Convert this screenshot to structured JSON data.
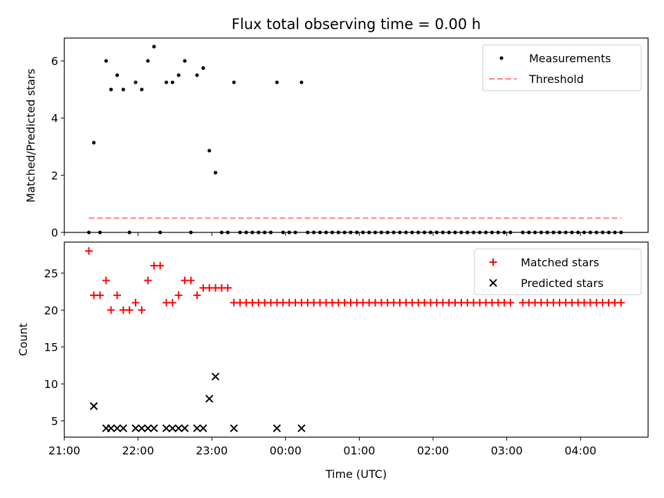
{
  "chart_data": [
    {
      "type": "scatter",
      "title": "Flux total observing time = 0.00 h",
      "xlabel": "",
      "ylabel": "Matched/Predicted stars",
      "xlim": [
        "21:00",
        "04:55"
      ],
      "ylim": [
        0,
        6.8
      ],
      "yticks": [
        0,
        2,
        4,
        6
      ],
      "grid": false,
      "legend_position": "top-right",
      "series": [
        {
          "name": "Measurements",
          "marker": "dot",
          "color": "#000000",
          "points": [
            [
              "21:20",
              0
            ],
            [
              "21:24",
              3.14
            ],
            [
              "21:29",
              0
            ],
            [
              "21:34",
              6.0
            ],
            [
              "21:38",
              5.0
            ],
            [
              "21:43",
              5.5
            ],
            [
              "21:48",
              5.0
            ],
            [
              "21:53",
              0
            ],
            [
              "21:58",
              5.25
            ],
            [
              "22:03",
              5.0
            ],
            [
              "22:08",
              6.0
            ],
            [
              "22:13",
              6.5
            ],
            [
              "22:18",
              0
            ],
            [
              "22:23",
              5.25
            ],
            [
              "22:28",
              5.25
            ],
            [
              "22:33",
              5.5
            ],
            [
              "22:38",
              6.0
            ],
            [
              "22:43",
              0
            ],
            [
              "22:48",
              5.5
            ],
            [
              "22:53",
              5.75
            ],
            [
              "22:58",
              2.86
            ],
            [
              "23:03",
              2.09
            ],
            [
              "23:08",
              0
            ],
            [
              "23:13",
              0
            ],
            [
              "23:18",
              5.25
            ],
            [
              "23:23",
              0
            ],
            [
              "23:28",
              0
            ],
            [
              "23:33",
              0
            ],
            [
              "23:38",
              0
            ],
            [
              "23:43",
              0
            ],
            [
              "23:48",
              0
            ],
            [
              "23:53",
              5.25
            ],
            [
              "23:58",
              0
            ],
            [
              "00:03",
              0
            ],
            [
              "00:08",
              0
            ],
            [
              "00:13",
              5.25
            ],
            [
              "00:18",
              0
            ],
            [
              "00:23",
              0
            ],
            [
              "00:28",
              0
            ],
            [
              "00:33",
              0
            ],
            [
              "00:38",
              0
            ],
            [
              "00:43",
              0
            ],
            [
              "00:48",
              0
            ],
            [
              "00:53",
              0
            ],
            [
              "00:58",
              0
            ],
            [
              "01:03",
              0
            ],
            [
              "01:08",
              0
            ],
            [
              "01:13",
              0
            ],
            [
              "01:18",
              0
            ],
            [
              "01:23",
              0
            ],
            [
              "01:28",
              0
            ],
            [
              "01:33",
              0
            ],
            [
              "01:38",
              0
            ],
            [
              "01:43",
              0
            ],
            [
              "01:48",
              0
            ],
            [
              "01:53",
              0
            ],
            [
              "01:58",
              0
            ],
            [
              "02:03",
              0
            ],
            [
              "02:08",
              0
            ],
            [
              "02:13",
              0
            ],
            [
              "02:18",
              0
            ],
            [
              "02:23",
              0
            ],
            [
              "02:28",
              0
            ],
            [
              "02:33",
              0
            ],
            [
              "02:38",
              0
            ],
            [
              "02:43",
              0
            ],
            [
              "02:48",
              0
            ],
            [
              "02:53",
              0
            ],
            [
              "02:58",
              0
            ],
            [
              "03:03",
              0
            ],
            [
              "03:13",
              0
            ],
            [
              "03:18",
              0
            ],
            [
              "03:23",
              0
            ],
            [
              "03:28",
              0
            ],
            [
              "03:33",
              0
            ],
            [
              "03:38",
              0
            ],
            [
              "03:43",
              0
            ],
            [
              "03:48",
              0
            ],
            [
              "03:53",
              0
            ],
            [
              "03:58",
              0
            ],
            [
              "04:03",
              0
            ],
            [
              "04:08",
              0
            ],
            [
              "04:13",
              0
            ],
            [
              "04:18",
              0
            ],
            [
              "04:23",
              0
            ],
            [
              "04:28",
              0
            ],
            [
              "04:33",
              0
            ]
          ]
        },
        {
          "name": "Threshold",
          "type": "line",
          "style": "dashed",
          "color": "#ff7f7f",
          "points": [
            [
              "21:20",
              0.5
            ],
            [
              "04:33",
              0.5
            ]
          ]
        }
      ]
    },
    {
      "type": "scatter",
      "title": "",
      "xlabel": "Time (UTC)",
      "ylabel": "Count",
      "xlim": [
        "21:00",
        "04:55"
      ],
      "ylim": [
        2.8,
        29.2
      ],
      "yticks": [
        5,
        10,
        15,
        20,
        25
      ],
      "xtick_labels": [
        "21:00",
        "22:00",
        "23:00",
        "00:00",
        "01:00",
        "02:00",
        "03:00",
        "04:00"
      ],
      "grid": false,
      "legend_position": "top-right",
      "series": [
        {
          "name": "Matched stars",
          "marker": "plus",
          "color": "#ff0000",
          "points": [
            [
              "21:20",
              28
            ],
            [
              "21:24",
              22
            ],
            [
              "21:29",
              22
            ],
            [
              "21:34",
              24
            ],
            [
              "21:38",
              20
            ],
            [
              "21:43",
              22
            ],
            [
              "21:48",
              20
            ],
            [
              "21:53",
              20
            ],
            [
              "21:58",
              21
            ],
            [
              "22:03",
              20
            ],
            [
              "22:08",
              24
            ],
            [
              "22:13",
              26
            ],
            [
              "22:18",
              26
            ],
            [
              "22:23",
              21
            ],
            [
              "22:28",
              21
            ],
            [
              "22:33",
              22
            ],
            [
              "22:38",
              24
            ],
            [
              "22:43",
              24
            ],
            [
              "22:48",
              22
            ],
            [
              "22:53",
              23
            ],
            [
              "22:58",
              23
            ],
            [
              "23:03",
              23
            ],
            [
              "23:08",
              23
            ],
            [
              "23:13",
              23
            ],
            [
              "23:18",
              21
            ],
            [
              "23:23",
              21
            ],
            [
              "23:28",
              21
            ],
            [
              "23:33",
              21
            ],
            [
              "23:38",
              21
            ],
            [
              "23:43",
              21
            ],
            [
              "23:48",
              21
            ],
            [
              "23:53",
              21
            ],
            [
              "23:58",
              21
            ],
            [
              "00:03",
              21
            ],
            [
              "00:08",
              21
            ],
            [
              "00:13",
              21
            ],
            [
              "00:18",
              21
            ],
            [
              "00:23",
              21
            ],
            [
              "00:28",
              21
            ],
            [
              "00:33",
              21
            ],
            [
              "00:38",
              21
            ],
            [
              "00:43",
              21
            ],
            [
              "00:48",
              21
            ],
            [
              "00:53",
              21
            ],
            [
              "00:58",
              21
            ],
            [
              "01:03",
              21
            ],
            [
              "01:08",
              21
            ],
            [
              "01:13",
              21
            ],
            [
              "01:18",
              21
            ],
            [
              "01:23",
              21
            ],
            [
              "01:28",
              21
            ],
            [
              "01:33",
              21
            ],
            [
              "01:38",
              21
            ],
            [
              "01:43",
              21
            ],
            [
              "01:48",
              21
            ],
            [
              "01:53",
              21
            ],
            [
              "01:58",
              21
            ],
            [
              "02:03",
              21
            ],
            [
              "02:08",
              21
            ],
            [
              "02:13",
              21
            ],
            [
              "02:18",
              21
            ],
            [
              "02:23",
              21
            ],
            [
              "02:28",
              21
            ],
            [
              "02:33",
              21
            ],
            [
              "02:38",
              21
            ],
            [
              "02:43",
              21
            ],
            [
              "02:48",
              21
            ],
            [
              "02:53",
              21
            ],
            [
              "02:58",
              21
            ],
            [
              "03:03",
              21
            ],
            [
              "03:13",
              21
            ],
            [
              "03:18",
              21
            ],
            [
              "03:23",
              21
            ],
            [
              "03:28",
              21
            ],
            [
              "03:33",
              21
            ],
            [
              "03:38",
              21
            ],
            [
              "03:43",
              21
            ],
            [
              "03:48",
              21
            ],
            [
              "03:53",
              21
            ],
            [
              "03:58",
              21
            ],
            [
              "04:03",
              21
            ],
            [
              "04:08",
              21
            ],
            [
              "04:13",
              21
            ],
            [
              "04:18",
              21
            ],
            [
              "04:23",
              21
            ],
            [
              "04:28",
              21
            ],
            [
              "04:33",
              21
            ]
          ]
        },
        {
          "name": "Predicted stars",
          "marker": "x",
          "color": "#000000",
          "points": [
            [
              "21:24",
              7
            ],
            [
              "21:34",
              4
            ],
            [
              "21:38",
              4
            ],
            [
              "21:43",
              4
            ],
            [
              "21:48",
              4
            ],
            [
              "21:58",
              4
            ],
            [
              "22:03",
              4
            ],
            [
              "22:08",
              4
            ],
            [
              "22:13",
              4
            ],
            [
              "22:23",
              4
            ],
            [
              "22:28",
              4
            ],
            [
              "22:33",
              4
            ],
            [
              "22:38",
              4
            ],
            [
              "22:48",
              4
            ],
            [
              "22:53",
              4
            ],
            [
              "22:58",
              8
            ],
            [
              "23:03",
              11
            ],
            [
              "23:18",
              4
            ],
            [
              "23:53",
              4
            ],
            [
              "00:13",
              4
            ]
          ]
        }
      ]
    }
  ]
}
